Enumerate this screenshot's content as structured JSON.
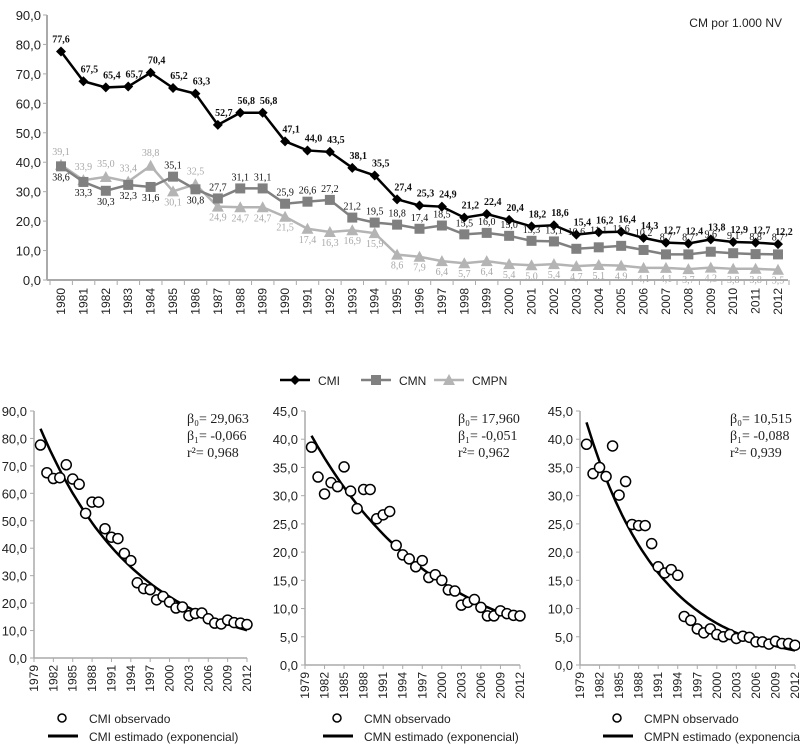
{
  "chart_data": [
    {
      "type": "line",
      "title": "",
      "unit_label": "CM por 1.000 NV",
      "xlabel": "",
      "ylabel": "",
      "ylim": [
        0,
        90
      ],
      "yticks": [
        "0,0",
        "10,0",
        "20,0",
        "30,0",
        "40,0",
        "50,0",
        "60,0",
        "70,0",
        "80,0",
        "90,0"
      ],
      "grid": false,
      "legend_position": "bottom",
      "x": [
        "1980",
        "1981",
        "1982",
        "1983",
        "1984",
        "1985",
        "1986",
        "1987",
        "1988",
        "1989",
        "1990",
        "1991",
        "1992",
        "1993",
        "1994",
        "1995",
        "1996",
        "1997",
        "1998",
        "1999",
        "2000",
        "2001",
        "2002",
        "2003",
        "2004",
        "2005",
        "2006",
        "2007",
        "2008",
        "2009",
        "2010",
        "2011",
        "2012"
      ],
      "series": [
        {
          "name": "CMI",
          "color": "#000000",
          "marker": "diamond",
          "values": [
            77.6,
            67.5,
            65.4,
            65.7,
            70.4,
            65.2,
            63.3,
            52.7,
            56.8,
            56.8,
            47.1,
            44.0,
            43.5,
            38.1,
            35.5,
            27.4,
            25.3,
            24.9,
            21.2,
            22.4,
            20.4,
            18.2,
            18.6,
            15.4,
            16.2,
            16.4,
            14.3,
            12.7,
            12.4,
            13.8,
            12.9,
            12.7,
            12.2
          ],
          "labels": [
            "77,6",
            "67,5",
            "65,4",
            "65,7",
            "70,4",
            "65,2",
            "63,3",
            "52,7",
            "56,8",
            "56,8",
            "47,1",
            "44,0",
            "43,5",
            "38,1",
            "35,5",
            "27,4",
            "25,3",
            "24,9",
            "21,2",
            "22,4",
            "20,4",
            "18,2",
            "18,6",
            "15,4",
            "16,2",
            "16,4",
            "14,3",
            "12,7",
            "12,4",
            "13,8",
            "12,9",
            "12,7",
            "12,2"
          ]
        },
        {
          "name": "CMN",
          "color": "#808080",
          "marker": "square",
          "values": [
            38.6,
            33.3,
            30.3,
            32.3,
            31.6,
            35.1,
            30.8,
            27.7,
            31.1,
            31.1,
            25.9,
            26.6,
            27.2,
            21.2,
            19.5,
            18.8,
            17.4,
            18.5,
            15.5,
            16.0,
            15.0,
            13.3,
            13.1,
            10.6,
            11.1,
            11.6,
            10.2,
            8.7,
            8.7,
            9.6,
            9.1,
            8.8,
            8.7
          ],
          "labels": [
            "38,6",
            "33,3",
            "30,3",
            "32,3",
            "31,6",
            "35,1",
            "30,8",
            "27,7",
            "31,1",
            "31,1",
            "25,9",
            "26,6",
            "27,2",
            "21,2",
            "19,5",
            "18,8",
            "17,4",
            "18,5",
            "15,5",
            "16,0",
            "15,0",
            "13,3",
            "13,1",
            "10,6",
            "11,1",
            "11,6",
            "10,2",
            "8,7",
            "8,7",
            "9,6",
            "9,1",
            "8,8",
            "8,7"
          ]
        },
        {
          "name": "CMPN",
          "color": "#b4b4b4",
          "marker": "triangle",
          "values": [
            39.1,
            33.9,
            35.0,
            33.4,
            38.8,
            30.1,
            32.5,
            24.9,
            24.7,
            24.7,
            21.5,
            17.4,
            16.3,
            16.9,
            15.9,
            8.6,
            7.9,
            6.4,
            5.7,
            6.4,
            5.4,
            5.0,
            5.4,
            4.7,
            5.1,
            4.9,
            4.1,
            4.1,
            3.7,
            4.2,
            3.8,
            3.8,
            3.5
          ],
          "labels": [
            "39,1",
            "33,9",
            "35,0",
            "33,4",
            "38,8",
            "30,1",
            "32,5",
            "24,9",
            "24,7",
            "24,7",
            "21,5",
            "17,4",
            "16,3",
            "16,9",
            "15,9",
            "8,6",
            "7,9",
            "6,4",
            "5,7",
            "6,4",
            "5,4",
            "5,0",
            "5,4",
            "4,7",
            "5,1",
            "4,9",
            "4,1",
            "4,1",
            "3,7",
            "4,2",
            "3,8",
            "3,8",
            "3,5"
          ]
        }
      ]
    },
    {
      "type": "scatter",
      "name": "CMI",
      "ylim": [
        0,
        90
      ],
      "yticks": [
        "0,0",
        "10,0",
        "20,0",
        "30,0",
        "40,0",
        "50,0",
        "60,0",
        "70,0",
        "80,0",
        "90,0"
      ],
      "xlim": [
        1979,
        2012
      ],
      "xticks": [
        "1979",
        "1982",
        "1985",
        "1988",
        "1991",
        "1994",
        "1997",
        "2000",
        "2003",
        "2006",
        "2009",
        "2012"
      ],
      "stats": {
        "b0": "β₀= 29,063",
        "b1": "β₁= -0,066",
        "r2": "r²= 0,968"
      },
      "model": {
        "b0": 29.063,
        "b1": -0.066
      },
      "legend": {
        "observed": "CMI observado",
        "estimated": "CMI estimado (exponencial)"
      },
      "series_ref": 0
    },
    {
      "type": "scatter",
      "name": "CMN",
      "ylim": [
        0,
        45
      ],
      "yticks": [
        "0,0",
        "5,0",
        "10,0",
        "15,0",
        "20,0",
        "25,0",
        "30,0",
        "35,0",
        "40,0",
        "45,0"
      ],
      "xlim": [
        1979,
        2012
      ],
      "xticks": [
        "1979",
        "1982",
        "1985",
        "1988",
        "1991",
        "1994",
        "1997",
        "2000",
        "2003",
        "2006",
        "2009",
        "2012"
      ],
      "stats": {
        "b0": "β₀= 17,960",
        "b1": "β₁= -0,051",
        "r2": "r²= 0,962"
      },
      "model": {
        "b0": 17.96,
        "b1": -0.051
      },
      "legend": {
        "observed": "CMN observado",
        "estimated": "CMN estimado (exponencial)"
      },
      "series_ref": 1
    },
    {
      "type": "scatter",
      "name": "CMPN",
      "ylim": [
        0,
        45
      ],
      "yticks": [
        "0,0",
        "5,0",
        "10,0",
        "15,0",
        "20,0",
        "25,0",
        "30,0",
        "35,0",
        "40,0",
        "45,0"
      ],
      "xlim": [
        1979,
        2012
      ],
      "xticks": [
        "1979",
        "1982",
        "1985",
        "1988",
        "1991",
        "1994",
        "1997",
        "2000",
        "2003",
        "2006",
        "2009",
        "2012"
      ],
      "stats": {
        "b0": "β₀= 10,515",
        "b1": "β₁= -0,088",
        "r2": "r²= 0,939"
      },
      "model": {
        "b0": 10.515,
        "b1": -0.088
      },
      "legend": {
        "observed": "CMPN observado",
        "estimated": "CMPN estimado (exponencial)"
      },
      "series_ref": 2
    }
  ]
}
